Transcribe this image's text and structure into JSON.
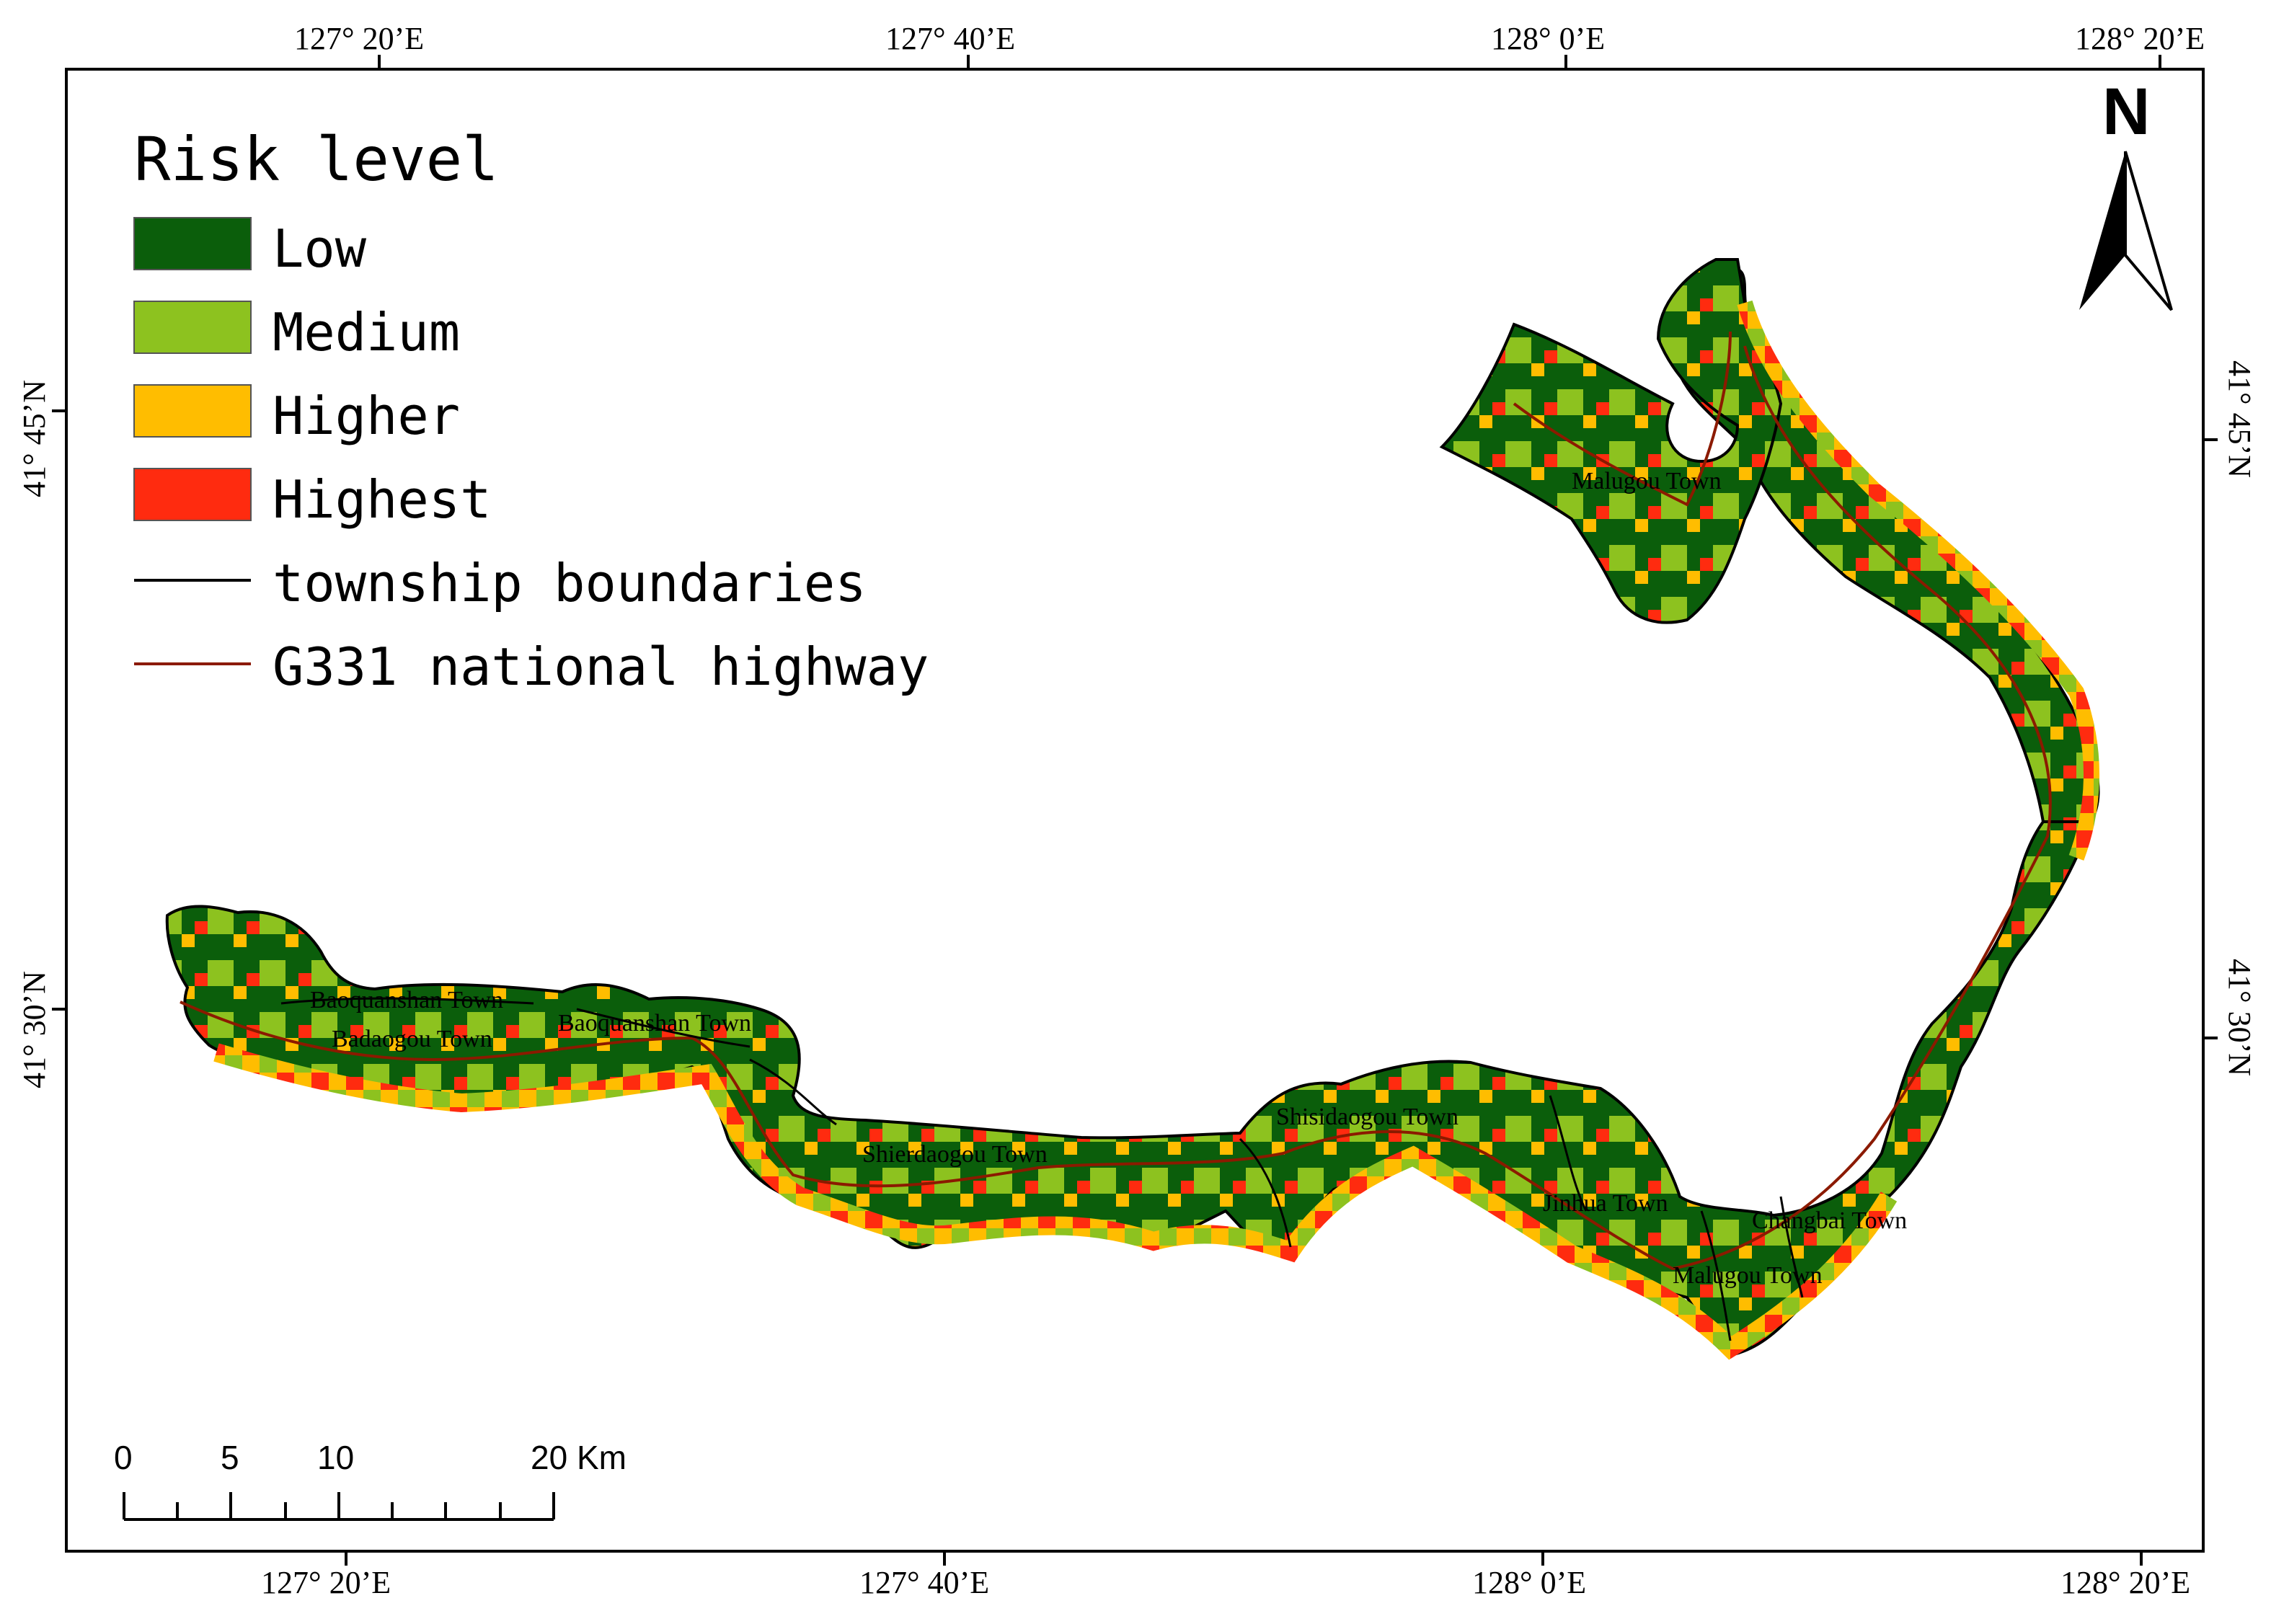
{
  "map": {
    "legend": {
      "title": "Risk level",
      "classes": [
        {
          "label": "Low",
          "color": "#0b5e0b"
        },
        {
          "label": "Medium",
          "color": "#8dc21f"
        },
        {
          "label": "Higher",
          "color": "#ffbd00"
        },
        {
          "label": "Highest",
          "color": "#ff2b0f"
        }
      ],
      "lines": [
        {
          "label": "township boundaries",
          "color": "#000000"
        },
        {
          "label": "G331 national highway",
          "color": "#8b1a00"
        }
      ]
    },
    "graticule": {
      "top_labels": [
        "127° 20’E",
        "127° 40’E",
        "128° 0’E",
        "128° 20’E"
      ],
      "bottom_labels": [
        "127° 20’E",
        "127° 40’E",
        "128° 0’E",
        "128° 20’E"
      ],
      "left_labels": [
        "41° 45’N",
        "41° 30’N"
      ],
      "right_labels": [
        "41° 45’N",
        "41° 30’N"
      ]
    },
    "north_arrow": {
      "label": "N"
    },
    "scale_bar": {
      "ticks": [
        "0",
        "5",
        "10",
        "20 Km"
      ]
    },
    "towns": [
      "Malugou Town",
      "Baoquanshan Town",
      "Badaogou Town",
      "Baoquanshan Town",
      "Shierdaogou Town",
      "Shisidaogou Town",
      "Jinhua Town",
      "Changbai Town",
      "Malugou Town"
    ]
  }
}
